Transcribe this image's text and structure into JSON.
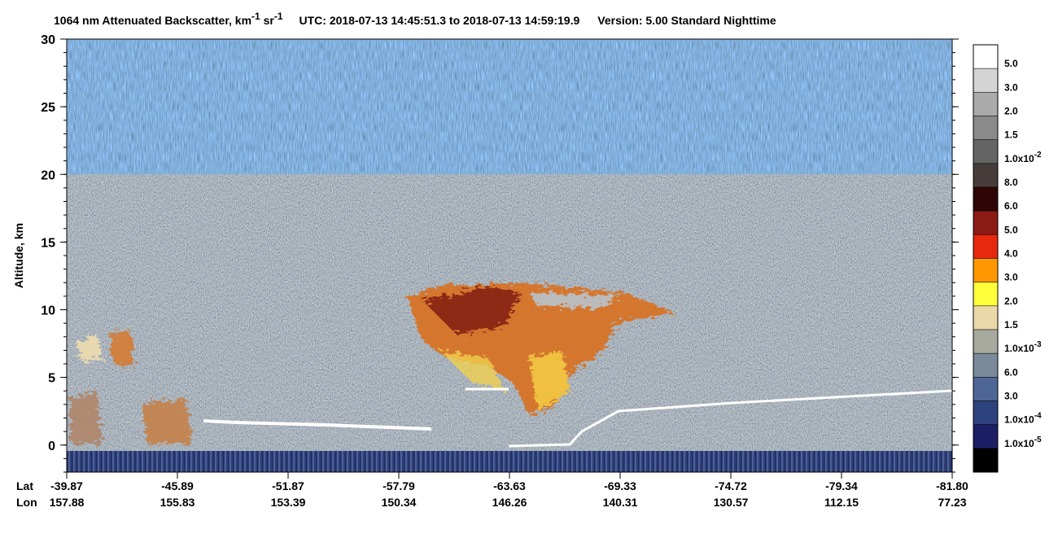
{
  "chart_data": {
    "type": "curtain",
    "title_parts": [
      "1064 nm Attenuated Backscatter, km",
      "-1",
      " sr",
      "-1",
      "UTC:  2018-07-13 14:45:51.3  to  2018-07-13 14:59:19.9",
      "Version: 5.00  Standard  Nighttime"
    ],
    "y_label": "Altitude, km",
    "ylim": [
      -2,
      30
    ],
    "yticks": [
      0,
      5,
      10,
      15,
      20,
      25,
      30
    ],
    "x_row_labels": [
      "Lat",
      "Lon"
    ],
    "lat": [
      "-39.87",
      "-45.89",
      "-51.87",
      "-57.79",
      "-63.63",
      "-69.33",
      "-74.72",
      "-79.34",
      "-81.80"
    ],
    "lon": [
      "157.88",
      "155.83",
      "153.39",
      "150.34",
      "146.26",
      "140.31",
      "130.57",
      "112.15",
      "77.23"
    ],
    "colorbar_colors": [
      "#ffffff",
      "#d4d4d4",
      "#aaaaaa",
      "#8a8a8a",
      "#646464",
      "#463c3a",
      "#2e0606",
      "#8c1a14",
      "#e8280e",
      "#ff9800",
      "#ffff3a",
      "#ead8a8",
      "#a8aaa0",
      "#7a8a9a",
      "#4e6696",
      "#2e427e",
      "#1c1e66",
      "#000000"
    ],
    "colorbar_labels": [
      {
        "text": "5.0"
      },
      {
        "text": "3.0"
      },
      {
        "text": "2.0"
      },
      {
        "text": "1.5"
      },
      {
        "text": "1.0x10",
        "exp": "-2"
      },
      {
        "text": "8.0"
      },
      {
        "text": "6.0"
      },
      {
        "text": "5.0"
      },
      {
        "text": "4.0"
      },
      {
        "text": "3.0"
      },
      {
        "text": "2.0"
      },
      {
        "text": "1.5"
      },
      {
        "text": "1.0x10",
        "exp": "-3"
      },
      {
        "text": "6.0"
      },
      {
        "text": "3.0"
      },
      {
        "text": "1.0x10",
        "exp": "-4"
      },
      {
        "text": "1.0x10",
        "exp": "-5"
      }
    ]
  }
}
